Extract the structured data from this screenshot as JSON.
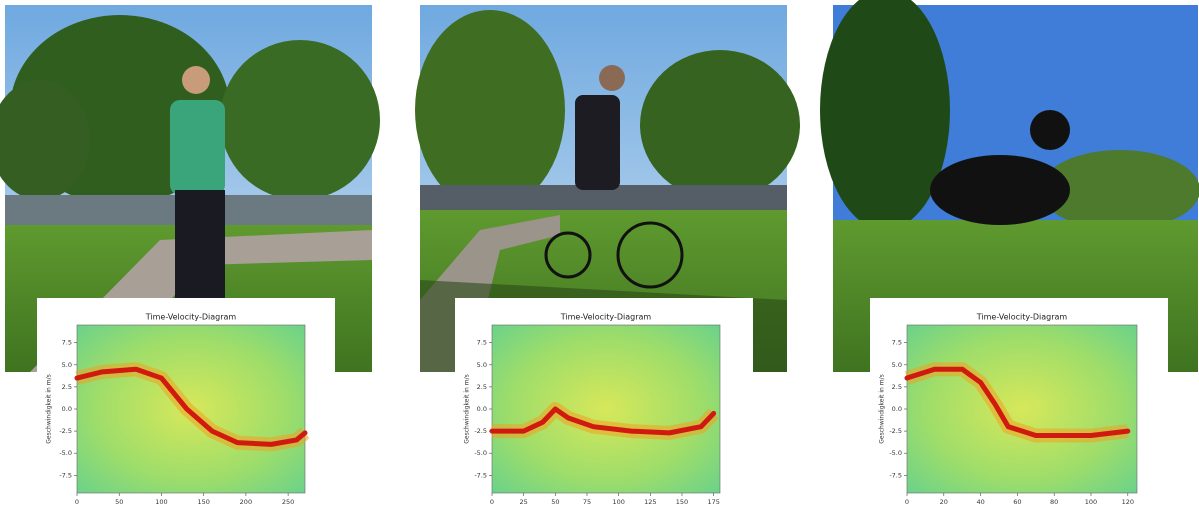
{
  "chart_data": [
    {
      "type": "spectrogram",
      "title": "Time-Velocity-Diagram",
      "y_label": "Geschwindigkeit in m/s",
      "x": [
        0,
        30,
        70,
        100,
        130,
        160,
        190,
        230,
        260,
        270
      ],
      "values": [
        3.5,
        4.2,
        4.5,
        3.5,
        0,
        -2.5,
        -3.8,
        -4,
        -3.5,
        -2.7
      ],
      "color": "#d01a10",
      "xlim": [
        0,
        270
      ],
      "xticks": [
        0,
        50,
        100,
        150,
        200,
        250
      ],
      "ylim": [
        -9.5,
        9.5
      ],
      "yticks": [
        {
          "value": 7.5,
          "label": "7.5"
        },
        {
          "value": 5,
          "label": "5.0"
        },
        {
          "value": 2.5,
          "label": "2.5"
        },
        {
          "value": 0,
          "label": "0.0"
        },
        {
          "value": -2.5,
          "label": "-2.5"
        },
        {
          "value": -5,
          "label": "-5.0"
        },
        {
          "value": -7.5,
          "label": "-7.5"
        }
      ]
    },
    {
      "type": "spectrogram",
      "title": "Time-Velocity-Diagram",
      "y_label": "Geschwindigkeit in m/s",
      "x": [
        0,
        25,
        40,
        50,
        60,
        80,
        110,
        140,
        165,
        175
      ],
      "values": [
        -2.5,
        -2.5,
        -1.5,
        0,
        -1,
        -2,
        -2.5,
        -2.7,
        -2,
        -0.5
      ],
      "color": "#d01a10",
      "xlim": [
        0,
        180
      ],
      "xticks": [
        0,
        25,
        50,
        75,
        100,
        125,
        150,
        175
      ],
      "ylim": [
        -9.5,
        9.5
      ],
      "yticks": [
        {
          "value": 7.5,
          "label": "7.5"
        },
        {
          "value": 5,
          "label": "5.0"
        },
        {
          "value": 2.5,
          "label": "2.5"
        },
        {
          "value": 0,
          "label": "0.0"
        },
        {
          "value": -2.5,
          "label": "-2.5"
        },
        {
          "value": -5,
          "label": "-5.0"
        },
        {
          "value": -7.5,
          "label": "-7.5"
        }
      ]
    },
    {
      "type": "spectrogram",
      "title": "Time-Velocity-Diagram",
      "y_label": "Geschwindigkeit in m/s",
      "x": [
        0,
        15,
        30,
        40,
        48,
        55,
        70,
        100,
        120
      ],
      "values": [
        3.5,
        4.5,
        4.5,
        3,
        0.5,
        -2,
        -3,
        -3,
        -2.5
      ],
      "color": "#d01a10",
      "xlim": [
        0,
        125
      ],
      "xticks": [
        0,
        20,
        40,
        60,
        80,
        100,
        120
      ],
      "ylim": [
        -9.5,
        9.5
      ],
      "yticks": [
        {
          "value": 7.5,
          "label": "7.5"
        },
        {
          "value": 5,
          "label": "5.0"
        },
        {
          "value": 2.5,
          "label": "2.5"
        },
        {
          "value": 0,
          "label": "0.0"
        },
        {
          "value": -2.5,
          "label": "-2.5"
        },
        {
          "value": -5,
          "label": "-5.0"
        },
        {
          "value": -7.5,
          "label": "-7.5"
        }
      ]
    }
  ]
}
